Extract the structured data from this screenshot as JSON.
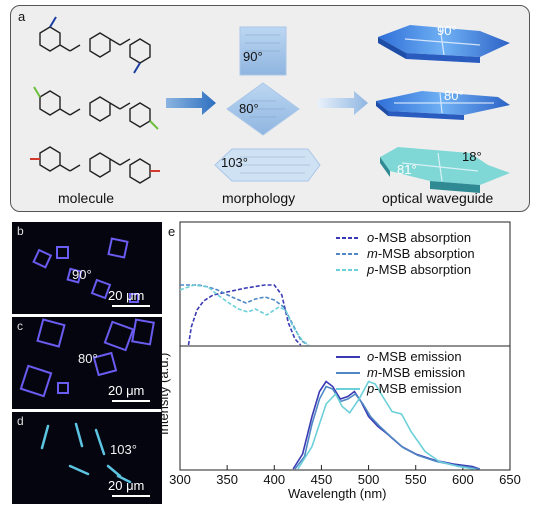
{
  "panel_a": {
    "label": "a",
    "captions": {
      "molecule": "molecule",
      "morphology": "morphology",
      "waveguide": "optical waveguide"
    },
    "morphology_angles": [
      "90°",
      "80°",
      "103°"
    ],
    "waveguide_angles": [
      "90°",
      "80°",
      "18°",
      "81°"
    ],
    "substituent_colors": [
      "#1a3fa0",
      "#6cbf3c",
      "#d23a2e"
    ]
  },
  "micro_panels": [
    {
      "label": "b",
      "angle": "90°",
      "scale": "20 μm"
    },
    {
      "label": "c",
      "angle": "80°",
      "scale": "20 μm"
    },
    {
      "label": "d",
      "angle": "103°",
      "scale": "20 μm"
    }
  ],
  "panel_e": {
    "label": "e"
  },
  "chart_data": {
    "type": "line",
    "xlabel": "Wavelength (nm)",
    "ylabel": "Intensity (a.u.)",
    "xlim": [
      300,
      650
    ],
    "xticks": [
      300,
      350,
      400,
      450,
      500,
      550,
      600,
      650
    ],
    "colors": {
      "o": "#3a3ab4",
      "m": "#4f88c4",
      "p": "#6cd0d8"
    },
    "absorption": {
      "series": [
        {
          "name": "o-MSB absorption",
          "legend_prefix": "o",
          "legend_suffix": "-MSB absorption",
          "color": "#3a3ab4",
          "dashed": true,
          "x": [
            309,
            312,
            318,
            325,
            335,
            350,
            370,
            390,
            400,
            408,
            415,
            422,
            428
          ],
          "y": [
            0.0,
            0.18,
            0.35,
            0.44,
            0.5,
            0.53,
            0.57,
            0.6,
            0.6,
            0.5,
            0.22,
            0.06,
            0.0
          ]
        },
        {
          "name": "m-MSB absorption",
          "legend_prefix": "m",
          "legend_suffix": "-MSB absorption",
          "color": "#4f88c4",
          "dashed": true,
          "x": [
            300,
            310,
            320,
            330,
            340,
            355,
            370,
            380,
            390,
            400,
            410,
            420,
            428,
            435
          ],
          "y": [
            0.6,
            0.6,
            0.6,
            0.58,
            0.55,
            0.48,
            0.42,
            0.46,
            0.48,
            0.45,
            0.38,
            0.2,
            0.05,
            0.0
          ]
        },
        {
          "name": "p-MSB absorption",
          "legend_prefix": "p",
          "legend_suffix": "-MSB absorption",
          "color": "#6cd0d8",
          "dashed": true,
          "x": [
            300,
            315,
            330,
            340,
            352,
            362,
            372,
            380,
            392,
            405,
            412,
            420,
            430,
            437
          ],
          "y": [
            0.55,
            0.6,
            0.58,
            0.5,
            0.42,
            0.36,
            0.33,
            0.36,
            0.3,
            0.38,
            0.35,
            0.18,
            0.04,
            0.0
          ]
        }
      ]
    },
    "emission": {
      "series": [
        {
          "name": "o-MSB emission",
          "legend_prefix": "o",
          "legend_suffix": "-MSB emission",
          "color": "#3a3ab4",
          "dashed": false,
          "x": [
            420,
            430,
            440,
            448,
            455,
            462,
            470,
            478,
            485,
            492,
            500,
            510,
            520,
            535,
            550,
            570,
            590,
            610,
            618
          ],
          "y": [
            0.0,
            0.12,
            0.42,
            0.62,
            0.7,
            0.66,
            0.56,
            0.58,
            0.62,
            0.54,
            0.42,
            0.34,
            0.28,
            0.18,
            0.12,
            0.07,
            0.04,
            0.02,
            0.0
          ]
        },
        {
          "name": "m-MSB emission",
          "legend_prefix": "m",
          "legend_suffix": "-MSB emission",
          "color": "#4f88c4",
          "dashed": false,
          "x": [
            422,
            432,
            440,
            448,
            455,
            462,
            470,
            478,
            486,
            494,
            502,
            512,
            522,
            537,
            552,
            572,
            592,
            610,
            618
          ],
          "y": [
            0.0,
            0.1,
            0.36,
            0.56,
            0.66,
            0.64,
            0.54,
            0.56,
            0.6,
            0.52,
            0.42,
            0.34,
            0.27,
            0.17,
            0.11,
            0.06,
            0.03,
            0.01,
            0.0
          ]
        },
        {
          "name": "p-MSB emission",
          "legend_prefix": "p",
          "legend_suffix": "-MSB emission",
          "color": "#6cd0d8",
          "dashed": false,
          "x": [
            425,
            440,
            455,
            465,
            472,
            480,
            490,
            500,
            507,
            515,
            525,
            535,
            545,
            560,
            575,
            595,
            612
          ],
          "y": [
            0.0,
            0.18,
            0.52,
            0.6,
            0.5,
            0.45,
            0.56,
            0.7,
            0.68,
            0.58,
            0.46,
            0.44,
            0.3,
            0.14,
            0.06,
            0.02,
            0.0
          ]
        }
      ]
    }
  }
}
